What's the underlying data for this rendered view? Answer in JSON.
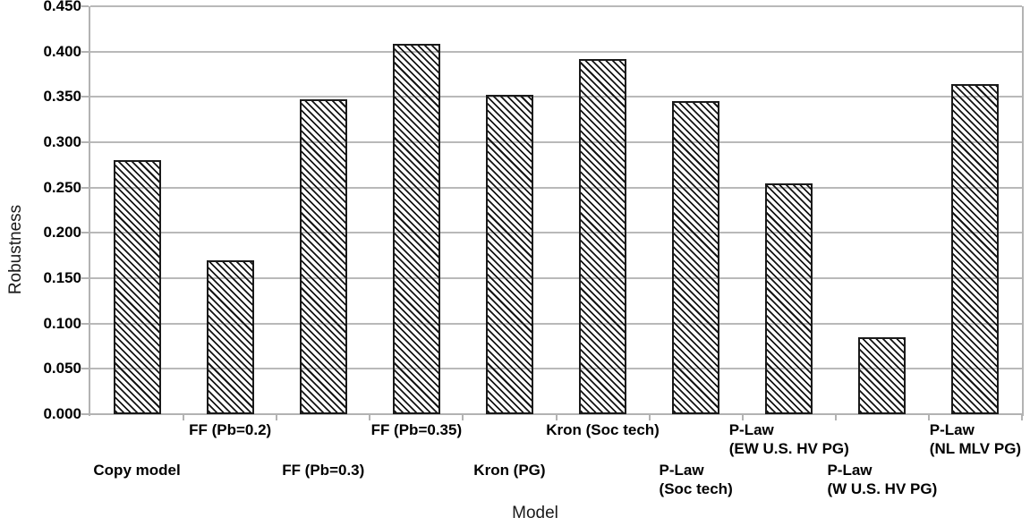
{
  "chart_data": {
    "type": "bar",
    "title": "",
    "xlabel": "Model",
    "ylabel": "Robustness",
    "categories": [
      "Copy model",
      "FF (Pb=0.2)",
      "FF (Pb=0.3)",
      "FF (Pb=0.35)",
      "Kron (PG)",
      "Kron (Soc tech)",
      "P-Law (Soc tech)",
      "P-Law (EW U.S. HV PG)",
      "P-Law (W U.S. HV PG)",
      "P-Law (NL MLV PG)"
    ],
    "category_label_lines": [
      [
        "Copy model"
      ],
      [
        "FF (Pb=0.2)"
      ],
      [
        "FF (Pb=0.3)"
      ],
      [
        "FF (Pb=0.35)"
      ],
      [
        "Kron (PG)"
      ],
      [
        "Kron (Soc tech)"
      ],
      [
        "P-Law",
        "(Soc tech)"
      ],
      [
        "P-Law",
        "(EW U.S. HV PG)"
      ],
      [
        "P-Law",
        "(W U.S. HV PG)"
      ],
      [
        "P-Law",
        "(NL MLV PG)"
      ]
    ],
    "values": [
      0.28,
      0.17,
      0.347,
      0.409,
      0.352,
      0.392,
      0.345,
      0.255,
      0.085,
      0.364
    ],
    "ylim": [
      0.0,
      0.45
    ],
    "ytick_step": 0.05,
    "ytick_labels": [
      "0.000",
      "0.050",
      "0.100",
      "0.150",
      "0.200",
      "0.250",
      "0.300",
      "0.350",
      "0.400",
      "0.450"
    ],
    "grid": "horizontal-gridlines-on",
    "legend": "none",
    "style": {
      "bar_fill": "diagonal-hatch",
      "hatch_color": "#141414",
      "bar_background": "transparent",
      "bar_border_color": "#1a1a1a",
      "axis_color": "#b3b3b3",
      "gridline_color": "#b9b9b9",
      "text_color": "#000000"
    }
  }
}
